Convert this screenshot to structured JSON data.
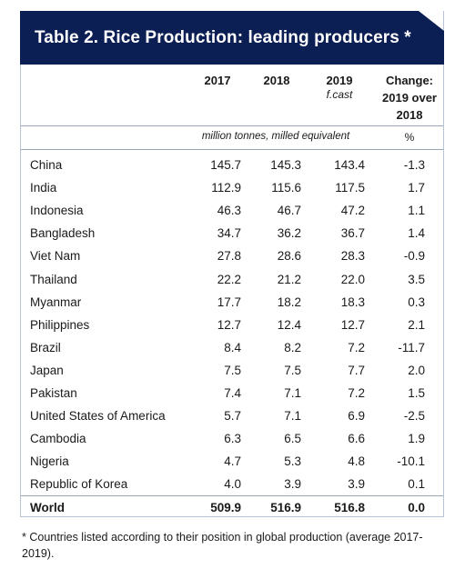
{
  "title": "Table 2.  Rice Production: leading producers *",
  "columns": {
    "c2017": "2017",
    "c2018": "2018",
    "c2019": "2019",
    "c2019_note": "f.cast",
    "change_line1": "Change:",
    "change_line2": "2019 over",
    "change_line3": "2018"
  },
  "units": {
    "production": "million tonnes, milled equivalent",
    "change": "%"
  },
  "rows": [
    {
      "country": "China",
      "y2017": "145.7",
      "y2018": "145.3",
      "y2019": "143.4",
      "change": "-1.3"
    },
    {
      "country": "India",
      "y2017": "112.9",
      "y2018": "115.6",
      "y2019": "117.5",
      "change": "1.7"
    },
    {
      "country": "Indonesia",
      "y2017": "46.3",
      "y2018": "46.7",
      "y2019": "47.2",
      "change": "1.1"
    },
    {
      "country": "Bangladesh",
      "y2017": "34.7",
      "y2018": "36.2",
      "y2019": "36.7",
      "change": "1.4"
    },
    {
      "country": "Viet Nam",
      "y2017": "27.8",
      "y2018": "28.6",
      "y2019": "28.3",
      "change": "-0.9"
    },
    {
      "country": "Thailand",
      "y2017": "22.2",
      "y2018": "21.2",
      "y2019": "22.0",
      "change": "3.5"
    },
    {
      "country": "Myanmar",
      "y2017": "17.7",
      "y2018": "18.2",
      "y2019": "18.3",
      "change": "0.3"
    },
    {
      "country": "Philippines",
      "y2017": "12.7",
      "y2018": "12.4",
      "y2019": "12.7",
      "change": "2.1"
    },
    {
      "country": "Brazil",
      "y2017": "8.4",
      "y2018": "8.2",
      "y2019": "7.2",
      "change": "-11.7"
    },
    {
      "country": "Japan",
      "y2017": "7.5",
      "y2018": "7.5",
      "y2019": "7.7",
      "change": "2.0"
    },
    {
      "country": "Pakistan",
      "y2017": "7.4",
      "y2018": "7.1",
      "y2019": "7.2",
      "change": "1.5"
    },
    {
      "country": "United States of America",
      "y2017": "5.7",
      "y2018": "7.1",
      "y2019": "6.9",
      "change": "-2.5"
    },
    {
      "country": "Cambodia",
      "y2017": "6.3",
      "y2018": "6.5",
      "y2019": "6.6",
      "change": "1.9"
    },
    {
      "country": "Nigeria",
      "y2017": "4.7",
      "y2018": "5.3",
      "y2019": "4.8",
      "change": "-10.1"
    },
    {
      "country": "Republic of Korea",
      "y2017": "4.0",
      "y2018": "3.9",
      "y2019": "3.9",
      "change": "0.1"
    }
  ],
  "world": {
    "country": "World",
    "y2017": "509.9",
    "y2018": "516.9",
    "y2019": "516.8",
    "change": "0.0"
  },
  "footnote": "* Countries listed according to their position in global production (average 2017-2019).",
  "colors": {
    "title_bg": "#0c1f54",
    "title_text": "#ffffff",
    "rule": "#9aa6b8"
  }
}
